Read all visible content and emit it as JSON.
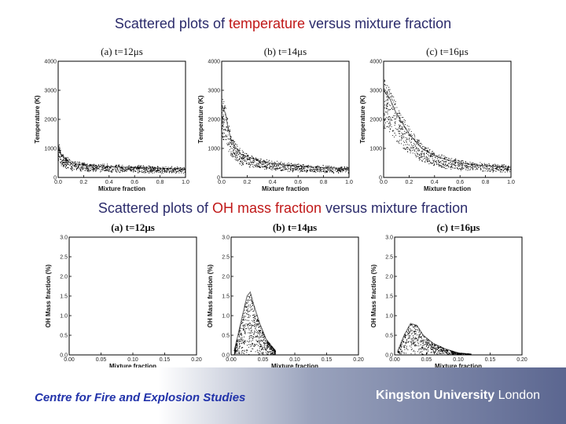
{
  "headings": {
    "top": {
      "pre": "Scattered plots of ",
      "highlight": "temperature",
      "post": " versus mixture fraction"
    },
    "bottom": {
      "pre": "Scattered plots of ",
      "highlight": "OH mass fraction",
      "post": " versus mixture fraction"
    }
  },
  "footer": {
    "centre": "Centre for Fire and Explosion Studies",
    "university_bold": "Kingston University",
    "university_light": "London"
  },
  "colors": {
    "heading": "#2b2b6b",
    "highlight": "#c01818",
    "footer_text": "#2233aa",
    "points": "#000000"
  },
  "chart_data": [
    {
      "type": "scatter",
      "title": "(a) t=12μs",
      "xlabel": "Mixture fraction",
      "ylabel": "Temperature (K)",
      "xlim": [
        0,
        1
      ],
      "ylim": [
        0,
        4000
      ],
      "xticks": [
        "0.0",
        "0.2",
        "0.4",
        "0.6",
        "0.8",
        "1.0"
      ],
      "yticks": [
        "0",
        "1000",
        "2000",
        "3000",
        "4000"
      ],
      "x": [
        0.0,
        0.02,
        0.05,
        0.1,
        0.2,
        0.3,
        0.4,
        0.6,
        0.8,
        1.0
      ],
      "y": [
        1100,
        800,
        650,
        500,
        420,
        390,
        370,
        340,
        310,
        290
      ]
    },
    {
      "type": "scatter",
      "title": "(b) t=14μs",
      "xlabel": "Mixture fraction",
      "ylabel": "Temperature (K)",
      "xlim": [
        0,
        1
      ],
      "ylim": [
        0,
        4000
      ],
      "xticks": [
        "0.0",
        "0.2",
        "0.4",
        "0.6",
        "0.8",
        "1.0"
      ],
      "yticks": [
        "0",
        "1000",
        "2000",
        "3000",
        "4000"
      ],
      "x": [
        0.0,
        0.03,
        0.05,
        0.08,
        0.15,
        0.3,
        0.5,
        0.7,
        1.0
      ],
      "y": [
        2500,
        2200,
        1700,
        1200,
        800,
        550,
        420,
        360,
        300
      ]
    },
    {
      "type": "scatter",
      "title": "(c) t=16μs",
      "xlabel": "Mixture fraction",
      "ylabel": "Temperature (K)",
      "xlim": [
        0,
        1
      ],
      "ylim": [
        0,
        4000
      ],
      "xticks": [
        "0.0",
        "0.2",
        "0.4",
        "0.6",
        "0.8",
        "1.0"
      ],
      "yticks": [
        "0",
        "1000",
        "2000",
        "3000",
        "4000"
      ],
      "x": [
        0.0,
        0.05,
        0.1,
        0.2,
        0.3,
        0.4,
        0.5,
        0.6,
        0.8,
        1.0
      ],
      "y": [
        3000,
        2700,
        2200,
        1500,
        1000,
        750,
        600,
        500,
        400,
        350
      ]
    },
    {
      "type": "scatter",
      "title": "(a) t=12μs",
      "xlabel": "Mixture fraction",
      "ylabel": "OH Mass fraction (%)",
      "xlim": [
        0,
        0.2
      ],
      "ylim": [
        0,
        3.0
      ],
      "xticks": [
        "0.00",
        "0.05",
        "0.10",
        "0.15",
        "0.20"
      ],
      "yticks": [
        "0.0",
        "0.5",
        "1.0",
        "1.5",
        "2.0",
        "2.5",
        "3.0"
      ],
      "x": [
        0.0,
        0.05,
        0.1,
        0.15,
        0.2
      ],
      "y": [
        0.0,
        0.0,
        0.0,
        0.0,
        0.0
      ]
    },
    {
      "type": "scatter",
      "title": "(b) t=14μs",
      "xlabel": "Mixture fraction",
      "ylabel": "OH Mass fraction (%)",
      "xlim": [
        0,
        0.2
      ],
      "ylim": [
        0,
        3.0
      ],
      "xticks": [
        "0.00",
        "0.05",
        "0.10",
        "0.15",
        "0.20"
      ],
      "yticks": [
        "0.0",
        "0.5",
        "1.0",
        "1.5",
        "2.0",
        "2.5",
        "3.0"
      ],
      "x": [
        0.005,
        0.015,
        0.025,
        0.03,
        0.035,
        0.045,
        0.055,
        0.07
      ],
      "y": [
        0.1,
        0.8,
        1.5,
        1.6,
        1.3,
        0.8,
        0.4,
        0.1
      ]
    },
    {
      "type": "scatter",
      "title": "(c) t=16μs",
      "xlabel": "Mixture fraction",
      "ylabel": "OH Mass fraction (%)",
      "xlim": [
        0,
        0.2
      ],
      "ylim": [
        0,
        3.0
      ],
      "xticks": [
        "0.00",
        "0.05",
        "0.10",
        "0.15",
        "0.20"
      ],
      "yticks": [
        "0.0",
        "0.5",
        "1.0",
        "1.5",
        "2.0",
        "2.5",
        "3.0"
      ],
      "x": [
        0.005,
        0.015,
        0.025,
        0.035,
        0.045,
        0.06,
        0.08,
        0.1,
        0.12
      ],
      "y": [
        0.1,
        0.5,
        0.8,
        0.75,
        0.5,
        0.3,
        0.15,
        0.05,
        0.02
      ]
    }
  ]
}
